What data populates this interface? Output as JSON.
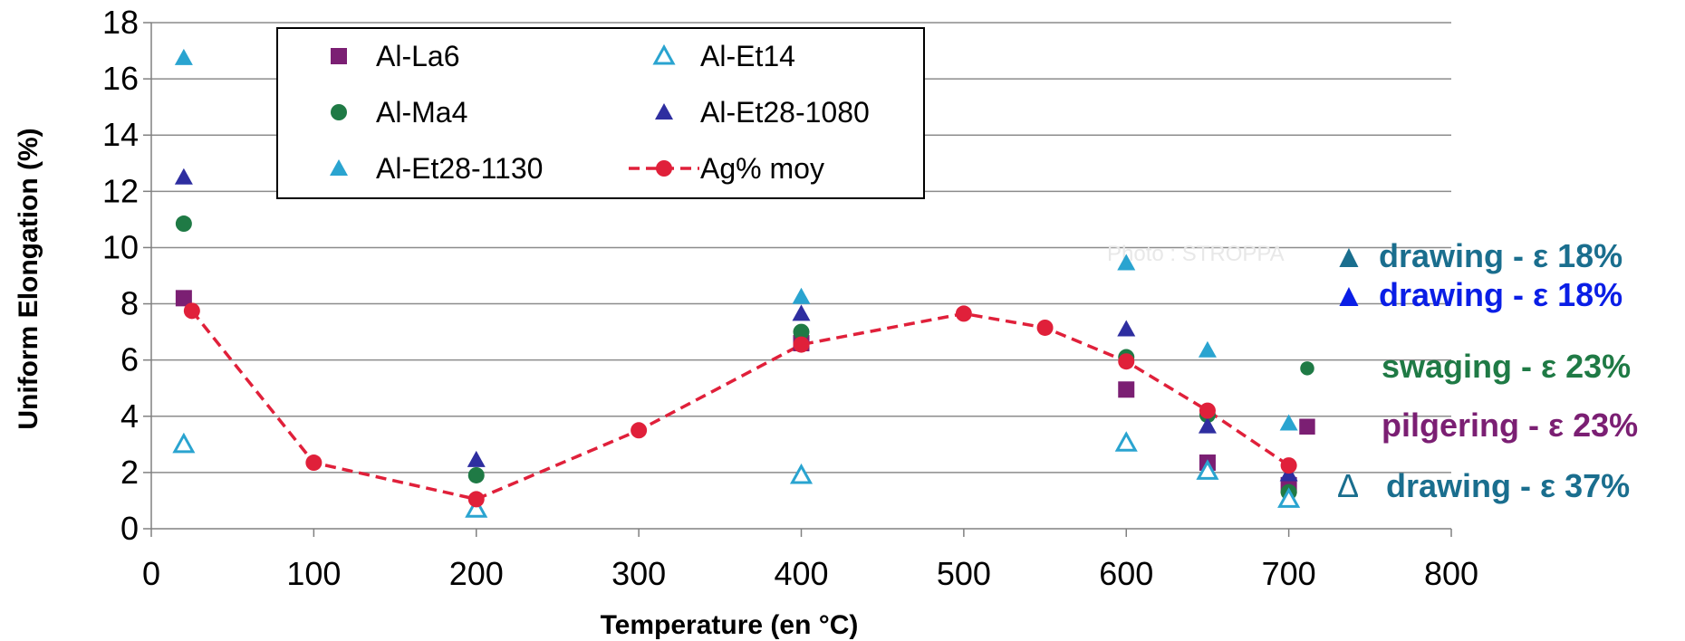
{
  "chart_data": {
    "type": "scatter",
    "xlabel": "Temperature (en °C)",
    "ylabel": "Uniform Elongation  (%)",
    "xlim": [
      0,
      800
    ],
    "ylim": [
      0,
      18
    ],
    "xticks": [
      "0",
      "100",
      "200",
      "300",
      "400",
      "500",
      "600",
      "700",
      "800"
    ],
    "yticks": [
      "0",
      "2",
      "4",
      "6",
      "8",
      "10",
      "12",
      "14",
      "16",
      "18"
    ],
    "grid": "horizontal",
    "legend_position": "top-left",
    "series": [
      {
        "name": "Al-La6",
        "marker": "square",
        "color": "#7b1f73",
        "x": [
          20,
          400,
          600,
          650,
          700
        ],
        "y": [
          8.2,
          6.6,
          4.95,
          2.35,
          1.55
        ]
      },
      {
        "name": "Al-Ma4",
        "marker": "circle",
        "color": "#1f7a45",
        "x": [
          20,
          200,
          400,
          600,
          650,
          700
        ],
        "y": [
          10.85,
          1.9,
          7.0,
          6.1,
          4.05,
          1.3
        ]
      },
      {
        "name": "Al-Et28-1130",
        "marker": "triangle",
        "color": "#2aa4d0",
        "x": [
          20,
          400,
          600,
          650,
          700
        ],
        "y": [
          16.75,
          8.25,
          9.45,
          6.35,
          3.75
        ]
      },
      {
        "name": "Al-Et14",
        "marker": "triangle-open",
        "color": "#2aa4d0",
        "x": [
          20,
          200,
          400,
          600,
          650,
          700
        ],
        "y": [
          3.0,
          0.7,
          1.9,
          3.05,
          2.05,
          1.05
        ]
      },
      {
        "name": "Al-Et28-1080",
        "marker": "triangle",
        "color": "#2e2ea0",
        "x": [
          20,
          200,
          400,
          600,
          650,
          700
        ],
        "y": [
          12.5,
          2.45,
          7.65,
          7.1,
          3.65,
          1.95
        ]
      },
      {
        "name": "Ag% moy",
        "marker": "circle-line",
        "color": "#e0203a",
        "x": [
          25,
          100,
          200,
          300,
          400,
          500,
          550,
          600,
          650,
          700
        ],
        "y": [
          7.75,
          2.35,
          1.05,
          3.5,
          6.55,
          7.65,
          7.15,
          5.95,
          4.2,
          2.25
        ]
      }
    ],
    "side_labels": [
      {
        "marker": "▲",
        "text": "drawing - ε 18%",
        "color": "#1a6e8e"
      },
      {
        "marker": "▲",
        "text": "drawing - ε 18%",
        "color": "#0a1ee6"
      },
      {
        "marker": "●",
        "text": "swaging  - ε 23%",
        "color": "#1f7a45"
      },
      {
        "marker": "■",
        "text": "pilgering - ε 23%",
        "color": "#7b1f73"
      },
      {
        "marker": "Δ",
        "text": " drawing - ε 37%",
        "color": "#1a6e8e"
      }
    ],
    "watermark": "Photo : STROPPA"
  }
}
